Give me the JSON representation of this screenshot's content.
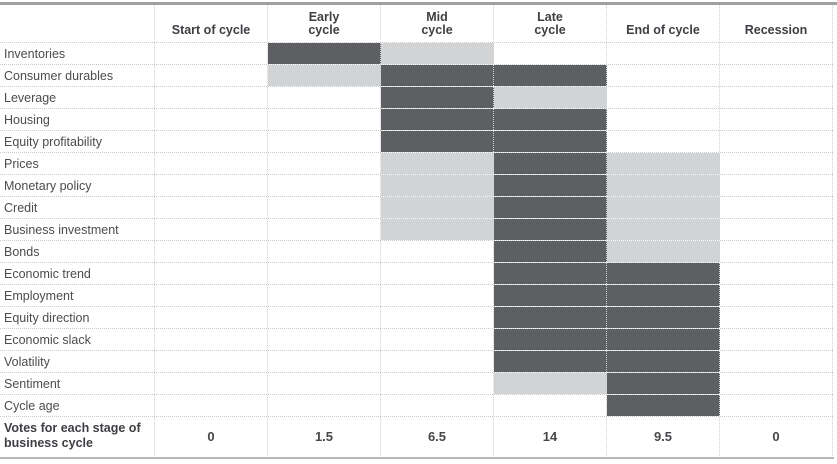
{
  "colors": {
    "dark_cell": "#5e5f63",
    "light_cell": "#d2d3d5",
    "top_rule": "#9fa1a4",
    "bottom_rule": "#b5b7b9"
  },
  "chart_data": {
    "type": "heatmap",
    "legend_position": "none",
    "cell_states": {
      "0": "empty",
      "1": "light",
      "2": "dark"
    },
    "columns": [
      "Start of cycle",
      "Early\ncycle",
      "Mid\ncycle",
      "Late\ncycle",
      "End of cycle",
      "Recession"
    ],
    "rows": [
      {
        "label": "Inventories",
        "cells": [
          0,
          2,
          1,
          0,
          0,
          0
        ]
      },
      {
        "label": "Consumer durables",
        "cells": [
          0,
          1,
          2,
          2,
          0,
          0
        ]
      },
      {
        "label": "Leverage",
        "cells": [
          0,
          0,
          2,
          1,
          0,
          0
        ]
      },
      {
        "label": "Housing",
        "cells": [
          0,
          0,
          2,
          2,
          0,
          0
        ]
      },
      {
        "label": "Equity profitability",
        "cells": [
          0,
          0,
          2,
          2,
          0,
          0
        ]
      },
      {
        "label": "Prices",
        "cells": [
          0,
          0,
          1,
          2,
          1,
          0
        ]
      },
      {
        "label": "Monetary policy",
        "cells": [
          0,
          0,
          1,
          2,
          1,
          0
        ]
      },
      {
        "label": "Credit",
        "cells": [
          0,
          0,
          1,
          2,
          1,
          0
        ]
      },
      {
        "label": "Business investment",
        "cells": [
          0,
          0,
          1,
          2,
          1,
          0
        ]
      },
      {
        "label": "Bonds",
        "cells": [
          0,
          0,
          0,
          2,
          1,
          0
        ]
      },
      {
        "label": "Economic trend",
        "cells": [
          0,
          0,
          0,
          2,
          2,
          0
        ]
      },
      {
        "label": "Employment",
        "cells": [
          0,
          0,
          0,
          2,
          2,
          0
        ]
      },
      {
        "label": "Equity direction",
        "cells": [
          0,
          0,
          0,
          2,
          2,
          0
        ]
      },
      {
        "label": "Economic slack",
        "cells": [
          0,
          0,
          0,
          2,
          2,
          0
        ]
      },
      {
        "label": "Volatility",
        "cells": [
          0,
          0,
          0,
          2,
          2,
          0
        ]
      },
      {
        "label": "Sentiment",
        "cells": [
          0,
          0,
          0,
          1,
          2,
          0
        ]
      },
      {
        "label": "Cycle age",
        "cells": [
          0,
          0,
          0,
          0,
          2,
          0
        ]
      }
    ],
    "footer": {
      "label": "Votes for each stage of\nbusiness cycle",
      "values": [
        "0",
        "1.5",
        "6.5",
        "14",
        "9.5",
        "0"
      ]
    }
  }
}
